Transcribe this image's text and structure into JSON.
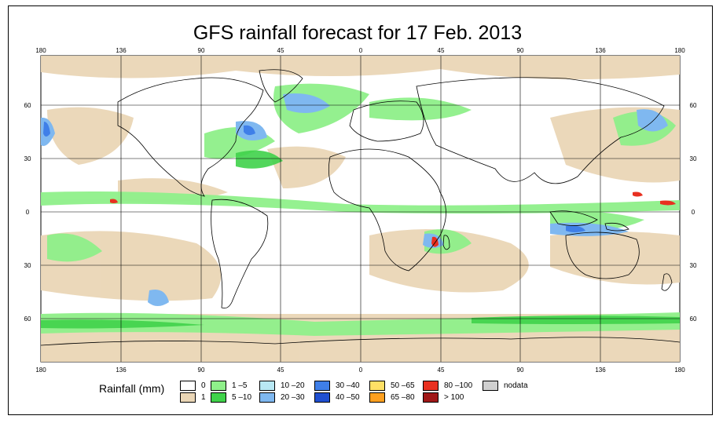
{
  "title": "GFS rainfall forecast for 17 Feb. 2013",
  "longitude_ticks": [
    "180",
    "136",
    "90",
    "45",
    "0",
    "45",
    "90",
    "136",
    "180"
  ],
  "latitude_ticks": [
    "60",
    "30",
    "0",
    "30",
    "60"
  ],
  "legend": {
    "title": "Rainfall (mm)",
    "items": [
      {
        "label": "0",
        "color": "#ffffff"
      },
      {
        "label": "1",
        "color": "#ead6b6"
      },
      {
        "label": "1 –5",
        "color": "#8ff08a"
      },
      {
        "label": "5 –10",
        "color": "#3fd24a"
      },
      {
        "label": "10 –20",
        "color": "#b8e8f4"
      },
      {
        "label": "20 –30",
        "color": "#7fb8f0"
      },
      {
        "label": "30 –40",
        "color": "#3f7fe8"
      },
      {
        "label": "40 –50",
        "color": "#1f4fd0"
      },
      {
        "label": "50 –65",
        "color": "#ffe066"
      },
      {
        "label": "65 –80",
        "color": "#ffa020"
      },
      {
        "label": "80 –100",
        "color": "#e83020"
      },
      {
        "label": "> 100",
        "color": "#a01818"
      },
      {
        "label": "nodata",
        "color": "#d0d0d0"
      }
    ]
  }
}
